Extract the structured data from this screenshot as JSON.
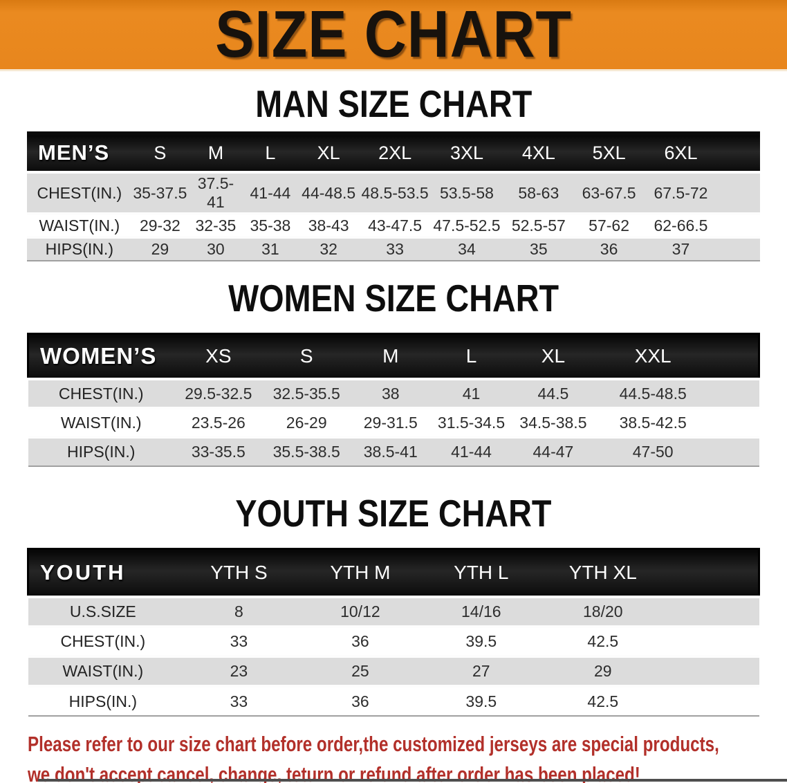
{
  "banner": {
    "title": "SIZE CHART",
    "bg_color": "#E8861D",
    "text_color": "#17120D"
  },
  "sections": [
    {
      "id": "men",
      "heading": "MAN SIZE CHART",
      "table": {
        "corner_label": "MEN’S",
        "columns": [
          "S",
          "M",
          "L",
          "XL",
          "2XL",
          "3XL",
          "4XL",
          "5XL",
          "6XL"
        ],
        "rows": [
          {
            "label": "CHEST(IN.)",
            "values": [
              "35-37.5",
              "37.5-41",
              "41-44",
              "44-48.5",
              "48.5-53.5",
              "53.5-58",
              "58-63",
              "63-67.5",
              "67.5-72"
            ]
          },
          {
            "label": "WAIST(IN.)",
            "values": [
              "29-32",
              "32-35",
              "35-38",
              "38-43",
              "43-47.5",
              "47.5-52.5",
              "52.5-57",
              "57-62",
              "62-66.5"
            ]
          },
          {
            "label": "HIPS(IN.)",
            "values": [
              "29",
              "30",
              "31",
              "32",
              "33",
              "34",
              "35",
              "36",
              "37"
            ]
          }
        ]
      }
    },
    {
      "id": "women",
      "heading": "WOMEN SIZE CHART",
      "table": {
        "corner_label": "WOMEN’S",
        "columns": [
          "XS",
          "S",
          "M",
          "L",
          "XL",
          "XXL"
        ],
        "rows": [
          {
            "label": "CHEST(IN.)",
            "values": [
              "29.5-32.5",
              "32.5-35.5",
              "38",
              "41",
              "44.5",
              "44.5-48.5"
            ]
          },
          {
            "label": "WAIST(IN.)",
            "values": [
              "23.5-26",
              "26-29",
              "29-31.5",
              "31.5-34.5",
              "34.5-38.5",
              "38.5-42.5"
            ]
          },
          {
            "label": "HIPS(IN.)",
            "values": [
              "33-35.5",
              "35.5-38.5",
              "38.5-41",
              "41-44",
              "44-47",
              "47-50"
            ]
          }
        ]
      }
    },
    {
      "id": "youth",
      "heading": "YOUTH SIZE CHART",
      "table": {
        "corner_label": "YOUTH",
        "columns": [
          "YTH S",
          "YTH M",
          "YTH L",
          "YTH XL"
        ],
        "rows": [
          {
            "label": "U.S.SIZE",
            "values": [
              "8",
              "10/12",
              "14/16",
              "18/20"
            ]
          },
          {
            "label": "CHEST(IN.)",
            "values": [
              "33",
              "36",
              "39.5",
              "42.5"
            ]
          },
          {
            "label": "WAIST(IN.)",
            "values": [
              "23",
              "25",
              "27",
              "29"
            ]
          },
          {
            "label": "HIPS(IN.)",
            "values": [
              "33",
              "36",
              "39.5",
              "42.5"
            ]
          }
        ]
      }
    }
  ],
  "disclaimer": {
    "color": "#B2302A",
    "lines": [
      "Please refer to our size chart before order,the customized jerseys are special products,",
      "we don't accept cancel, change, teturn or refund after order has been placed!"
    ]
  },
  "style_colors": {
    "header_band_black": "#141414",
    "row_stripe_gray": "#DCDCDC",
    "row_stripe_white": "#FFFFFF"
  }
}
